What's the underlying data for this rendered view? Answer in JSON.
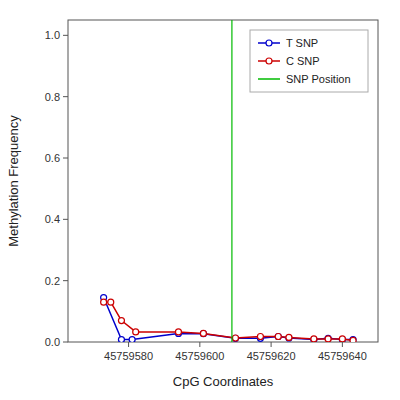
{
  "chart_data": {
    "type": "line",
    "x_label": "CpG Coordinates",
    "y_label": "Methylation Frequency",
    "series": [
      {
        "name": "T SNP",
        "color": "#0000cc",
        "marker": "circle",
        "line_style": "solid",
        "x": [
          45759573,
          45759578,
          45759581,
          45759594,
          45759601,
          45759610,
          45759617,
          45759622,
          45759625,
          45759632,
          45759636,
          45759640,
          45759643
        ],
        "values": [
          0.145,
          0.008,
          0.008,
          0.028,
          0.027,
          0.012,
          0.012,
          0.018,
          0.013,
          0.008,
          0.012,
          0.008,
          0.008
        ]
      },
      {
        "name": "C SNP",
        "color": "#cc0000",
        "marker": "circle",
        "line_style": "solid",
        "x": [
          45759573,
          45759575,
          45759578,
          45759582,
          45759594,
          45759601,
          45759610,
          45759617,
          45759622,
          45759625,
          45759632,
          45759636,
          45759640,
          45759643
        ],
        "values": [
          0.13,
          0.13,
          0.07,
          0.033,
          0.033,
          0.028,
          0.013,
          0.018,
          0.018,
          0.015,
          0.01,
          0.01,
          0.01,
          0.005
        ]
      },
      {
        "name": "SNP Position",
        "type": "vline",
        "color": "#00bb00",
        "x": [
          45759609
        ]
      }
    ],
    "xlim": [
      45759563,
      45759650
    ],
    "ylim": [
      0.0,
      1.05
    ],
    "xticks": [
      45759580,
      45759600,
      45759620,
      45759640
    ],
    "yticks": [
      {
        "value": 0.0,
        "label": "0.0"
      },
      0.2,
      0.4,
      0.6,
      0.8,
      {
        "value": 1.0,
        "label": "1.0"
      }
    ],
    "grid": false,
    "legend": "upper right"
  }
}
